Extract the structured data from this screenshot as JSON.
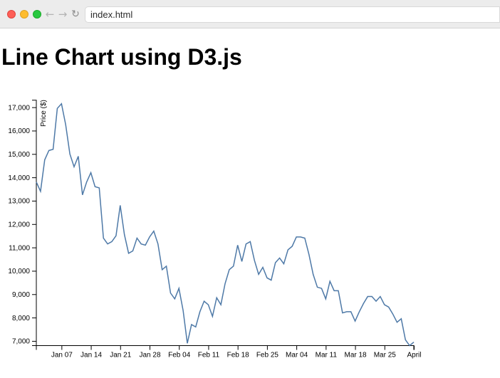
{
  "browser": {
    "url": "index.html",
    "back_icon": "arrow-left-icon",
    "forward_icon": "arrow-right-icon",
    "reload_icon": "reload-icon"
  },
  "page": {
    "title": "Line Chart using D3.js"
  },
  "colors": {
    "line": "#4e79a7",
    "axis": "#000000"
  },
  "chart_data": {
    "type": "line",
    "title": "",
    "xlabel": "",
    "ylabel": "Price ($)",
    "ylim": [
      6800,
      17300
    ],
    "xlim": [
      "2018-01-01",
      "2018-04-01"
    ],
    "x_ticks": [
      {
        "date": "2018-01-07",
        "label": "Jan 07"
      },
      {
        "date": "2018-01-14",
        "label": "Jan 14"
      },
      {
        "date": "2018-01-21",
        "label": "Jan 21"
      },
      {
        "date": "2018-01-28",
        "label": "Jan 28"
      },
      {
        "date": "2018-02-04",
        "label": "Feb 04"
      },
      {
        "date": "2018-02-11",
        "label": "Feb 11"
      },
      {
        "date": "2018-02-18",
        "label": "Feb 18"
      },
      {
        "date": "2018-02-25",
        "label": "Feb 25"
      },
      {
        "date": "2018-03-04",
        "label": "Mar 04"
      },
      {
        "date": "2018-03-11",
        "label": "Mar 11"
      },
      {
        "date": "2018-03-18",
        "label": "Mar 18"
      },
      {
        "date": "2018-03-25",
        "label": "Mar 25"
      },
      {
        "date": "2018-04-01",
        "label": "April"
      }
    ],
    "y_ticks": [
      {
        "value": 7000,
        "label": "7,000"
      },
      {
        "value": 8000,
        "label": "8,000"
      },
      {
        "value": 9000,
        "label": "9,000"
      },
      {
        "value": 10000,
        "label": "10,000"
      },
      {
        "value": 11000,
        "label": "11,000"
      },
      {
        "value": 12000,
        "label": "12,000"
      },
      {
        "value": 13000,
        "label": "13,000"
      },
      {
        "value": 14000,
        "label": "14,000"
      },
      {
        "value": 15000,
        "label": "15,000"
      },
      {
        "value": 16000,
        "label": "16,000"
      },
      {
        "value": 17000,
        "label": "17,000"
      }
    ],
    "grid": false,
    "series": [
      {
        "x": [
          "2018-01-01",
          "2018-01-02",
          "2018-01-03",
          "2018-01-04",
          "2018-01-05",
          "2018-01-06",
          "2018-01-07",
          "2018-01-08",
          "2018-01-09",
          "2018-01-10",
          "2018-01-11",
          "2018-01-12",
          "2018-01-13",
          "2018-01-14",
          "2018-01-15",
          "2018-01-16",
          "2018-01-17",
          "2018-01-18",
          "2018-01-19",
          "2018-01-20",
          "2018-01-21",
          "2018-01-22",
          "2018-01-23",
          "2018-01-24",
          "2018-01-25",
          "2018-01-26",
          "2018-01-27",
          "2018-01-28",
          "2018-01-29",
          "2018-01-30",
          "2018-01-31",
          "2018-02-01",
          "2018-02-02",
          "2018-02-03",
          "2018-02-04",
          "2018-02-05",
          "2018-02-06",
          "2018-02-07",
          "2018-02-08",
          "2018-02-09",
          "2018-02-10",
          "2018-02-11",
          "2018-02-12",
          "2018-02-13",
          "2018-02-14",
          "2018-02-15",
          "2018-02-16",
          "2018-02-17",
          "2018-02-18",
          "2018-02-19",
          "2018-02-20",
          "2018-02-21",
          "2018-02-22",
          "2018-02-23",
          "2018-02-24",
          "2018-02-25",
          "2018-02-26",
          "2018-02-27",
          "2018-02-28",
          "2018-03-01",
          "2018-03-02",
          "2018-03-03",
          "2018-03-04",
          "2018-03-05",
          "2018-03-06",
          "2018-03-07",
          "2018-03-08",
          "2018-03-09",
          "2018-03-10",
          "2018-03-11",
          "2018-03-12",
          "2018-03-13",
          "2018-03-14",
          "2018-03-15",
          "2018-03-16",
          "2018-03-17",
          "2018-03-18",
          "2018-03-19",
          "2018-03-20",
          "2018-03-21",
          "2018-03-22",
          "2018-03-23",
          "2018-03-24",
          "2018-03-25",
          "2018-03-26",
          "2018-03-27",
          "2018-03-28",
          "2018-03-29",
          "2018-03-30",
          "2018-03-31",
          "2018-04-01"
        ],
        "values": [
          13800,
          13400,
          14750,
          15150,
          15200,
          16950,
          17150,
          16250,
          15000,
          14450,
          14900,
          13250,
          13800,
          14200,
          13600,
          13550,
          11400,
          11150,
          11250,
          11500,
          12800,
          11550,
          10750,
          10850,
          11400,
          11150,
          11100,
          11450,
          11700,
          11150,
          10050,
          10200,
          9050,
          8800,
          9250,
          8300,
          6900,
          7700,
          7600,
          8250,
          8700,
          8550,
          8050,
          8850,
          8550,
          9450,
          10050,
          10200,
          11100,
          10400,
          11150,
          11250,
          10450,
          9850,
          10150,
          9700,
          9600,
          10350,
          10550,
          10300,
          10900,
          11050,
          11450,
          11450,
          11400,
          10700,
          9850,
          9300,
          9250,
          8800,
          9550,
          9150,
          9150,
          8200,
          8250,
          8250,
          7850,
          8250,
          8600,
          8900,
          8900,
          8700,
          8900,
          8550,
          8450,
          8150,
          7800,
          7950,
          7050,
          6800,
          6950
        ]
      }
    ]
  }
}
